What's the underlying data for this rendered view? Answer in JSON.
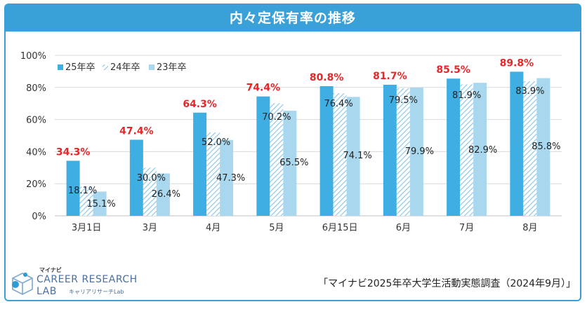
{
  "header": {
    "title": "内々定保有率の推移"
  },
  "source": "「マイナビ2025年卒大学生活動実態調査（2024年9月）」",
  "logo": {
    "top_text": "マイナビ",
    "line1": "CAREER RESEARCH",
    "line2": "LAB",
    "sub": "キャリアリサーチLab"
  },
  "colors": {
    "frame": "#3aa0d8",
    "series_25": "#3eaee3",
    "series_24": "#8fc9ea",
    "series_23": "#a9d8ee",
    "highlight_label": "#e8262a"
  },
  "chart_data": {
    "type": "bar",
    "title": "内々定保有率の推移",
    "categories": [
      "3月1日",
      "3月",
      "4月",
      "5月",
      "6月15日",
      "6月",
      "7月",
      "8月"
    ],
    "series": [
      {
        "name": "25年卒",
        "values": [
          34.3,
          47.4,
          64.3,
          74.4,
          80.8,
          81.7,
          85.5,
          89.8
        ],
        "style": "solid"
      },
      {
        "name": "24年卒",
        "values": [
          18.1,
          30.0,
          52.0,
          70.2,
          76.4,
          79.5,
          81.9,
          83.9
        ],
        "style": "hatched"
      },
      {
        "name": "23年卒",
        "values": [
          15.1,
          26.4,
          47.3,
          65.5,
          74.1,
          79.9,
          82.9,
          85.8
        ],
        "style": "solid-light"
      }
    ],
    "labels": {
      "s25": [
        "34.3%",
        "47.4%",
        "64.3%",
        "74.4%",
        "80.8%",
        "81.7%",
        "85.5%",
        "89.8%"
      ],
      "s24": [
        "18.1%",
        "30.0%",
        "52.0%",
        "70.2%",
        "76.4%",
        "79.5%",
        "81.9%",
        "83.9%"
      ],
      "s23": [
        "15.1%",
        "26.4%",
        "47.3%",
        "65.5%",
        "74.1%",
        "79.9%",
        "82.9%",
        "85.8%"
      ]
    },
    "y_ticks": [
      "0%",
      "20%",
      "40%",
      "60%",
      "80%",
      "100%"
    ],
    "ylim": [
      0,
      100
    ],
    "grid": true,
    "legend": "top-left"
  }
}
